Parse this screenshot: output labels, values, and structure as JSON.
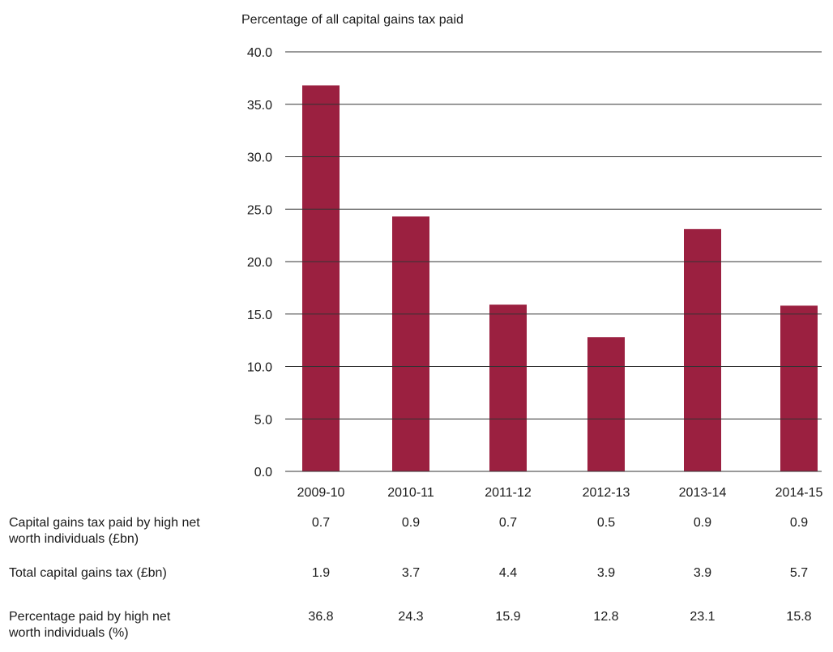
{
  "chart_data": {
    "type": "bar",
    "title": "Percentage of all capital gains tax paid",
    "categories": [
      "2009-10",
      "2010-11",
      "2011-12",
      "2012-13",
      "2013-14",
      "2014-15"
    ],
    "values": [
      36.8,
      24.3,
      15.9,
      12.8,
      23.1,
      15.8
    ],
    "ylim": [
      0,
      40
    ],
    "yticks": [
      "0.0",
      "5.0",
      "10.0",
      "15.0",
      "20.0",
      "25.0",
      "30.0",
      "35.0",
      "40.0"
    ],
    "grid": true,
    "bar_color": "#9b2040"
  },
  "table": {
    "rows": [
      {
        "label": "Capital gains tax paid by high net worth individuals (£bn)",
        "values": [
          "0.7",
          "0.9",
          "0.7",
          "0.5",
          "0.9",
          "0.9"
        ]
      },
      {
        "label": "Total capital gains tax (£bn)",
        "values": [
          "1.9",
          "3.7",
          "4.4",
          "3.9",
          "3.9",
          "5.7"
        ]
      },
      {
        "label": "Percentage paid by high net worth individuals (%)",
        "values": [
          "36.8",
          "24.3",
          "15.9",
          "12.8",
          "23.1",
          "15.8"
        ]
      }
    ]
  }
}
